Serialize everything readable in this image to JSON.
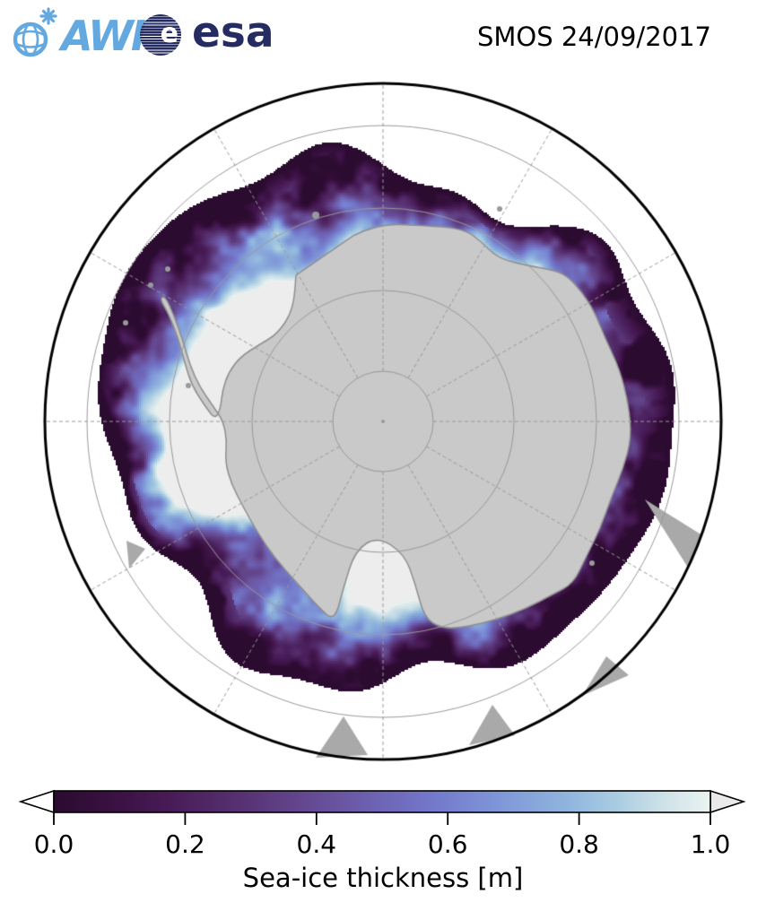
{
  "header": {
    "awi": {
      "label": "AWI",
      "color": "#63a8df"
    },
    "esa": {
      "label": "esa",
      "e_glyph": "e",
      "color": "#252c62"
    },
    "title": "SMOS 24/09/2017"
  },
  "map": {
    "projection": "south-polar",
    "region": "Antarctica / Southern Ocean",
    "ocean_color": "#ffffff",
    "land_color": "#c9c9c9",
    "land_edge_color": "#8f8f8f",
    "graticule_color": "#999999",
    "boundary_color": "#000000",
    "over_ice_color": "#ededee",
    "pole_dot_color": "#8a8a8a"
  },
  "colorbar": {
    "label": "Sea-ice thickness [m]",
    "ticks": [
      "0.0",
      "0.2",
      "0.4",
      "0.6",
      "0.8",
      "1.0"
    ],
    "min": 0.0,
    "max": 1.0,
    "under_color": "#ffffff",
    "over_color": "#e9e9e9",
    "stops": [
      [
        "0.00",
        "#2b0b30"
      ],
      [
        "0.08",
        "#38103f"
      ],
      [
        "0.17",
        "#471a55"
      ],
      [
        "0.28",
        "#563070"
      ],
      [
        "0.38",
        "#64478f"
      ],
      [
        "0.48",
        "#6d60b0"
      ],
      [
        "0.58",
        "#7379cb"
      ],
      [
        "0.68",
        "#7f97d8"
      ],
      [
        "0.78",
        "#8fb4dd"
      ],
      [
        "0.86",
        "#abcde2"
      ],
      [
        "0.93",
        "#cfe2e8"
      ],
      [
        "1.00",
        "#eaf3f1"
      ]
    ]
  },
  "chart_data": {
    "type": "heatmap",
    "title": "SMOS 24/09/2017",
    "colorbar_label": "Sea-ice thickness [m]",
    "colorbar_ticks": [
      0.0,
      0.2,
      0.4,
      0.6,
      0.8,
      1.0
    ],
    "range": [
      0.0,
      1.0
    ],
    "units": "m",
    "legend_position": "bottom",
    "region": "Southern Ocean sea-ice around Antarctica, south polar view"
  }
}
